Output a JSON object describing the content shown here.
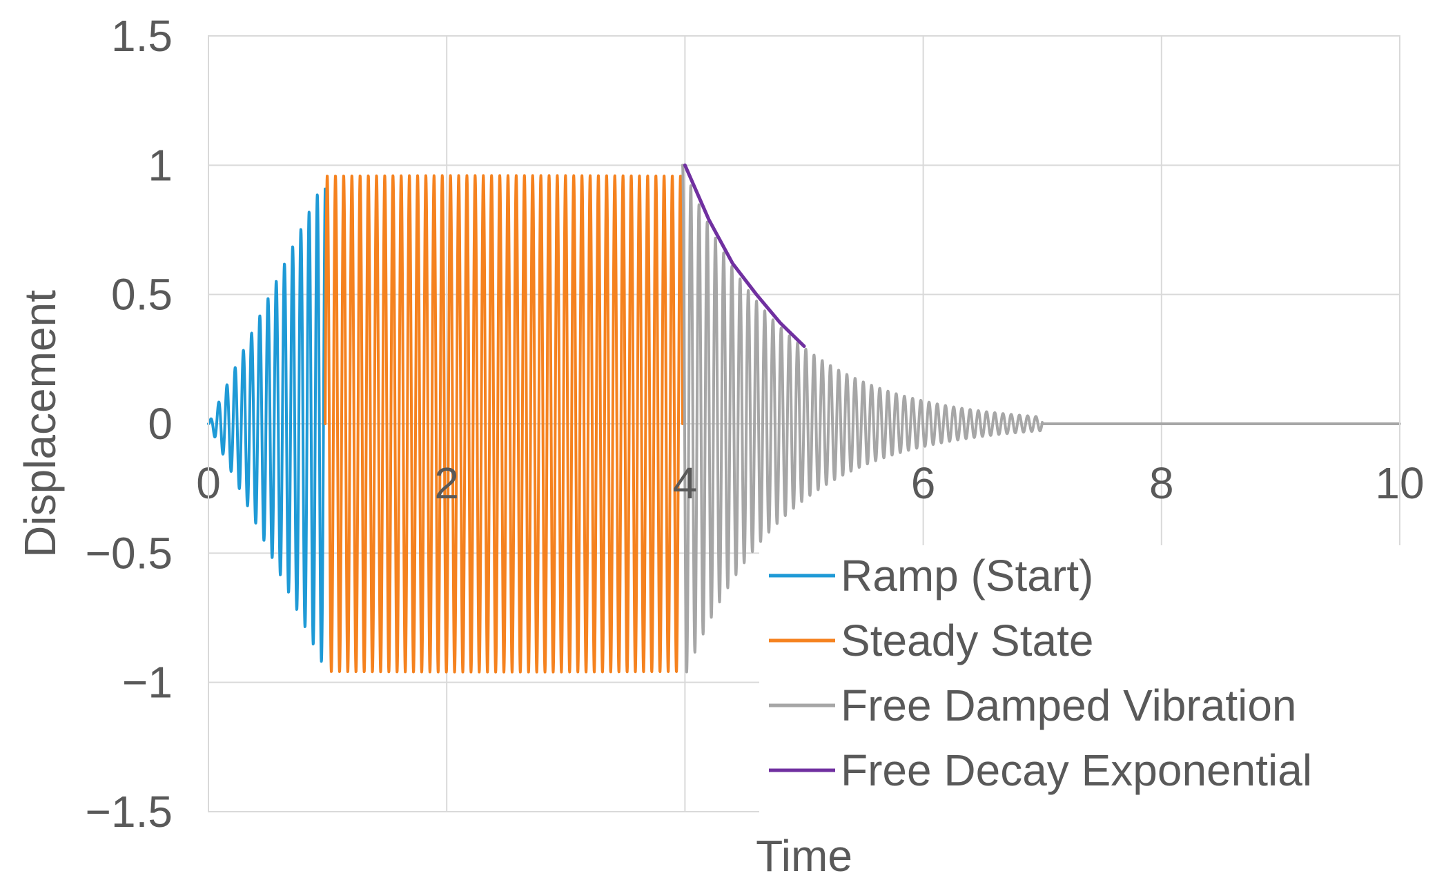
{
  "chart_data": {
    "type": "line",
    "title": "",
    "xlabel": "Time",
    "ylabel": "Displacement",
    "xlim": [
      0,
      10
    ],
    "ylim": [
      -1.5,
      1.5
    ],
    "xticks": [
      0,
      2,
      4,
      6,
      8,
      10
    ],
    "xtick_labels": [
      "0",
      "2",
      "4",
      "6",
      "8",
      "10"
    ],
    "yticks": [
      1.5,
      1,
      0.5,
      0,
      -0.5,
      -1,
      -1.5
    ],
    "ytick_labels": [
      "1.5",
      "1",
      "0.5",
      "0",
      "−0.5",
      "−1",
      "−1.5"
    ],
    "grid": true,
    "legend_position": "bottom-right",
    "series": [
      {
        "name": "Ramp (Start)",
        "color": "#1f9ad6",
        "kind": "ramped_sine",
        "t_start": 0,
        "t_end": 0.98,
        "amplitude_end": 0.95,
        "frequency": 14.5
      },
      {
        "name": "Steady State",
        "color": "#f5821f",
        "kind": "sine",
        "t_start": 0.98,
        "t_end": 3.98,
        "amplitude": 0.96,
        "frequency": 14.5
      },
      {
        "name": "Free Damped Vibration",
        "color": "#a6a6a6",
        "kind": "damped_sine",
        "t_start": 3.98,
        "t_end": 10,
        "amplitude": 1.0,
        "decay_rate": 1.2,
        "frequency": 14.5,
        "signal_end": 7.0
      },
      {
        "name": "Free Decay Exponential",
        "color": "#7030a0",
        "kind": "exponential",
        "points": [
          [
            4.0,
            1.0
          ],
          [
            4.2,
            0.79
          ],
          [
            4.4,
            0.62
          ],
          [
            4.6,
            0.5
          ],
          [
            4.8,
            0.39
          ],
          [
            5.0,
            0.3
          ]
        ]
      }
    ]
  }
}
